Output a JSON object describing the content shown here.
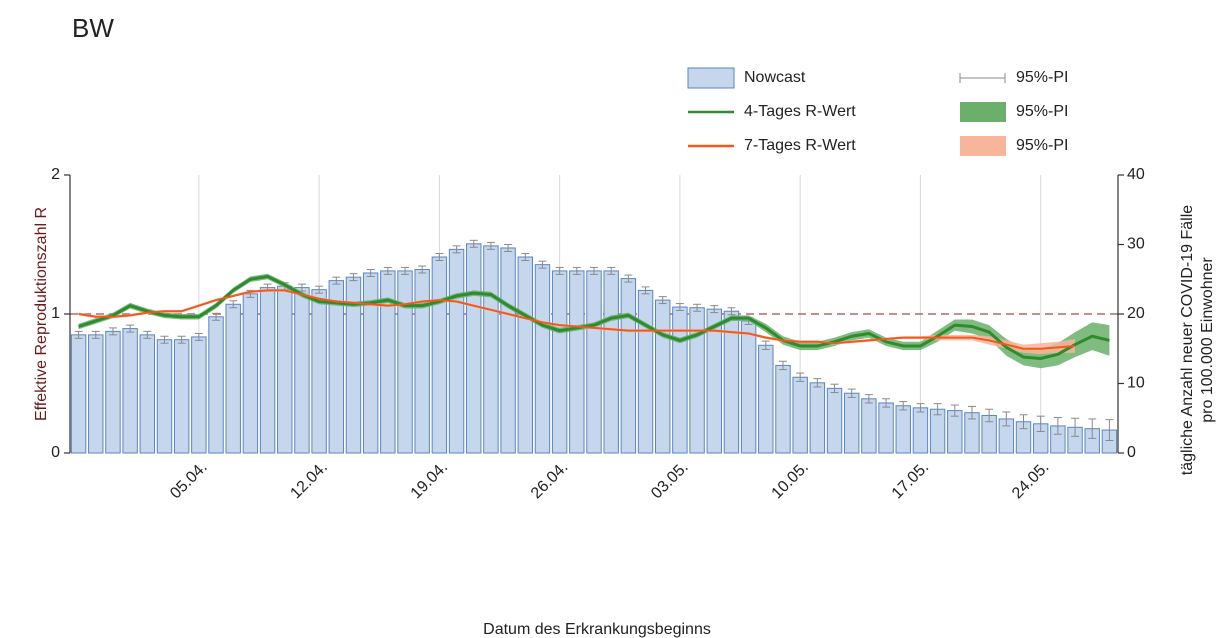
{
  "chart_data": {
    "type": "combo",
    "title": "BW",
    "x_label": "Datum des Erkrankungsbeginns",
    "y_label": "Effektive Reproduktionszahl R",
    "y2_label": [
      "tägliche Anzahl neuer COVID-19 Fälle",
      "pro 100.000 Einwohner"
    ],
    "categories": [
      null,
      null,
      null,
      null,
      null,
      null,
      null,
      "05.04.",
      null,
      null,
      null,
      null,
      null,
      null,
      "12.04.",
      null,
      null,
      null,
      null,
      null,
      null,
      "19.04.",
      null,
      null,
      null,
      null,
      null,
      null,
      "26.04.",
      null,
      null,
      null,
      null,
      null,
      null,
      "03.05.",
      null,
      null,
      null,
      null,
      null,
      null,
      "10.05.",
      null,
      null,
      null,
      null,
      null,
      null,
      "17.05.",
      null,
      null,
      null,
      null,
      null,
      null,
      "24.05.",
      null,
      null,
      null,
      null
    ],
    "ylim": [
      0,
      2
    ],
    "yticks": [
      0,
      1,
      2
    ],
    "y2lim": [
      0,
      40
    ],
    "y2ticks": [
      0,
      10,
      20,
      30,
      40
    ],
    "reference": 1,
    "grid": true,
    "series": [
      {
        "name": "Nowcast",
        "type": "bar",
        "axis": "y2",
        "color": "#c5d7ec",
        "edge_color": "#5b84c4",
        "interval_name": "95%-PI",
        "values": [
          17.0,
          17.0,
          17.5,
          17.9,
          17.0,
          16.3,
          16.3,
          16.7,
          19.6,
          21.4,
          22.9,
          23.8,
          24.0,
          23.8,
          23.5,
          24.8,
          25.3,
          25.9,
          26.2,
          26.2,
          26.4,
          28.2,
          29.3,
          30.1,
          29.8,
          29.5,
          28.2,
          27.1,
          26.2,
          26.2,
          26.2,
          26.2,
          25.1,
          23.4,
          22.0,
          21.0,
          20.9,
          20.7,
          20.4,
          19.0,
          15.5,
          12.6,
          10.9,
          10.1,
          9.3,
          8.6,
          7.8,
          7.2,
          6.8,
          6.5,
          6.3,
          6.1,
          5.8,
          5.4,
          4.9,
          4.5,
          4.2,
          3.9,
          3.7,
          3.5,
          3.3
        ],
        "error": [
          0.5,
          0.5,
          0.5,
          0.5,
          0.5,
          0.5,
          0.5,
          0.5,
          0.5,
          0.5,
          0.5,
          0.5,
          0.5,
          0.5,
          0.5,
          0.5,
          0.5,
          0.5,
          0.5,
          0.5,
          0.5,
          0.5,
          0.5,
          0.5,
          0.5,
          0.5,
          0.5,
          0.5,
          0.5,
          0.5,
          0.5,
          0.5,
          0.5,
          0.5,
          0.5,
          0.5,
          0.5,
          0.5,
          0.5,
          0.5,
          0.6,
          0.6,
          0.6,
          0.6,
          0.6,
          0.6,
          0.6,
          0.6,
          0.6,
          0.6,
          0.8,
          0.8,
          0.9,
          0.9,
          1.0,
          1.0,
          1.1,
          1.2,
          1.3,
          1.4,
          1.5
        ]
      },
      {
        "name": "4-Tages R-Wert",
        "type": "line",
        "axis": "y",
        "color": "#2e8b2e",
        "band_color": "#6aaf6a",
        "interval_name": "95%-PI",
        "values": [
          0.91,
          0.95,
          0.99,
          1.06,
          1.02,
          0.99,
          0.98,
          0.98,
          1.06,
          1.17,
          1.25,
          1.27,
          1.21,
          1.14,
          1.09,
          1.08,
          1.07,
          1.08,
          1.1,
          1.06,
          1.06,
          1.09,
          1.13,
          1.15,
          1.14,
          1.06,
          0.99,
          0.92,
          0.88,
          0.9,
          0.92,
          0.97,
          0.99,
          0.92,
          0.85,
          0.81,
          0.85,
          0.91,
          0.97,
          0.97,
          0.9,
          0.81,
          0.77,
          0.77,
          0.8,
          0.84,
          0.86,
          0.8,
          0.77,
          0.77,
          0.84,
          0.92,
          0.91,
          0.87,
          0.76,
          0.69,
          0.68,
          0.71,
          0.78,
          0.84,
          0.81
        ],
        "interval": [
          0.02,
          0.02,
          0.02,
          0.02,
          0.02,
          0.02,
          0.02,
          0.02,
          0.02,
          0.02,
          0.02,
          0.02,
          0.02,
          0.02,
          0.02,
          0.02,
          0.02,
          0.02,
          0.02,
          0.02,
          0.02,
          0.02,
          0.02,
          0.02,
          0.02,
          0.02,
          0.02,
          0.02,
          0.02,
          0.02,
          0.02,
          0.02,
          0.02,
          0.02,
          0.02,
          0.02,
          0.02,
          0.02,
          0.02,
          0.02,
          0.03,
          0.03,
          0.03,
          0.03,
          0.03,
          0.03,
          0.03,
          0.03,
          0.03,
          0.03,
          0.04,
          0.04,
          0.05,
          0.05,
          0.06,
          0.06,
          0.07,
          0.08,
          0.09,
          0.1,
          0.11
        ]
      },
      {
        "name": "7-Tages R-Wert",
        "type": "line",
        "axis": "y",
        "color": "#f05a1e",
        "band_color": "#f7b59a",
        "interval_name": "95%-PI",
        "values": [
          1.0,
          0.98,
          0.98,
          0.99,
          1.01,
          1.02,
          1.02,
          1.06,
          1.1,
          1.13,
          1.16,
          1.17,
          1.17,
          1.14,
          1.11,
          1.09,
          1.08,
          1.07,
          1.06,
          1.07,
          1.09,
          1.1,
          1.09,
          1.06,
          1.03,
          1.0,
          0.97,
          0.94,
          0.92,
          0.91,
          0.9,
          0.89,
          0.88,
          0.88,
          0.88,
          0.88,
          0.88,
          0.88,
          0.87,
          0.86,
          0.83,
          0.81,
          0.8,
          0.8,
          0.79,
          0.8,
          0.81,
          0.82,
          0.83,
          0.83,
          0.83,
          0.83,
          0.83,
          0.81,
          0.78,
          0.75,
          0.75,
          0.76,
          0.77,
          null,
          null
        ],
        "interval": [
          0.01,
          0.01,
          0.01,
          0.01,
          0.01,
          0.01,
          0.01,
          0.01,
          0.01,
          0.01,
          0.01,
          0.01,
          0.01,
          0.01,
          0.01,
          0.01,
          0.01,
          0.01,
          0.01,
          0.01,
          0.01,
          0.01,
          0.01,
          0.01,
          0.01,
          0.01,
          0.01,
          0.01,
          0.01,
          0.01,
          0.01,
          0.01,
          0.01,
          0.01,
          0.01,
          0.01,
          0.01,
          0.01,
          0.01,
          0.01,
          0.01,
          0.01,
          0.01,
          0.01,
          0.01,
          0.01,
          0.01,
          0.01,
          0.01,
          0.01,
          0.02,
          0.02,
          0.02,
          0.03,
          0.03,
          0.03,
          0.04,
          0.04,
          0.05,
          null,
          null
        ]
      }
    ]
  }
}
